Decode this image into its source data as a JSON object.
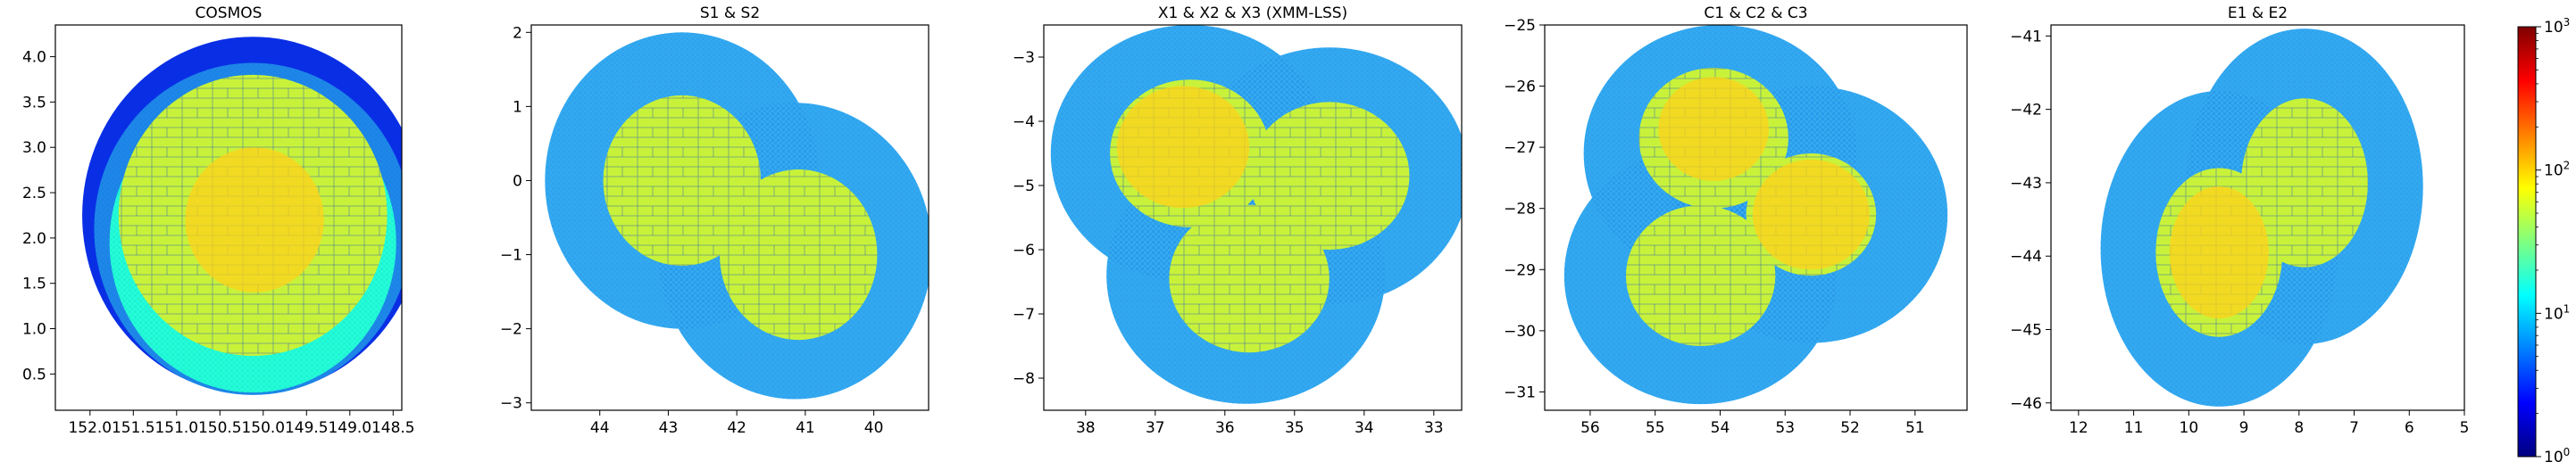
{
  "chart_data": [
    {
      "type": "heatmap",
      "title": "COSMOS",
      "xlim": [
        152.4,
        148.4
      ],
      "ylim": [
        0.1,
        4.35
      ],
      "xticks": [
        "152.0",
        "151.5",
        "151.0",
        "150.5",
        "150.0",
        "149.5",
        "149.0",
        "148.5"
      ],
      "yticks": [
        "0.5",
        "1.0",
        "1.5",
        "2.0",
        "2.5",
        "3.0",
        "3.5",
        "4.0"
      ],
      "footprint_circles": [
        {
          "cx": 150.12,
          "cy": 2.25,
          "r": 1.97
        }
      ],
      "deep_regions": [
        {
          "cx": 150.12,
          "cy": 2.25,
          "r": 1.55
        }
      ],
      "ultradeep_regions": [
        {
          "cx": 150.1,
          "cy": 2.2,
          "r": 0.8
        }
      ]
    },
    {
      "type": "heatmap",
      "title": "S1 & S2",
      "xlim": [
        45.0,
        39.2
      ],
      "ylim": [
        -3.1,
        2.1
      ],
      "xticks": [
        "44",
        "43",
        "42",
        "41",
        "40"
      ],
      "yticks": [
        "-3",
        "-2",
        "-1",
        "0",
        "1",
        "2"
      ],
      "footprint_circles": [
        {
          "cx": 42.8,
          "cy": 0.0,
          "r": 2.0
        },
        {
          "cx": 41.15,
          "cy": -0.95,
          "r": 2.0
        }
      ],
      "deep_regions": [
        {
          "cx": 42.8,
          "cy": 0.0,
          "r": 1.15
        },
        {
          "cx": 41.1,
          "cy": -1.0,
          "r": 1.15
        }
      ],
      "ultradeep_regions": []
    },
    {
      "type": "heatmap",
      "title": "X1 & X2 & X3 (XMM-LSS)",
      "xlim": [
        38.6,
        32.6
      ],
      "ylim": [
        -8.5,
        -2.5
      ],
      "xticks": [
        "38",
        "37",
        "36",
        "35",
        "34",
        "33"
      ],
      "yticks": [
        "-8",
        "-7",
        "-6",
        "-5",
        "-4",
        "-3"
      ],
      "footprint_circles": [
        {
          "cx": 36.5,
          "cy": -4.5,
          "r": 2.0
        },
        {
          "cx": 34.5,
          "cy": -4.85,
          "r": 2.0
        },
        {
          "cx": 35.7,
          "cy": -6.4,
          "r": 2.0
        }
      ],
      "deep_regions": [
        {
          "cx": 36.5,
          "cy": -4.5,
          "r": 1.15
        },
        {
          "cx": 34.5,
          "cy": -4.85,
          "r": 1.15
        },
        {
          "cx": 35.65,
          "cy": -6.45,
          "r": 1.15
        }
      ],
      "ultradeep_regions": [
        {
          "cx": 36.6,
          "cy": -4.4,
          "r": 0.95
        }
      ]
    },
    {
      "type": "heatmap",
      "title": "C1 & C2 & C3",
      "xlim": [
        56.7,
        50.2
      ],
      "ylim": [
        -31.3,
        -25.0
      ],
      "xticks": [
        "56",
        "55",
        "54",
        "53",
        "52",
        "51"
      ],
      "yticks": [
        "-31",
        "-30",
        "-29",
        "-28",
        "-27",
        "-26",
        "-25"
      ],
      "footprint_circles": [
        {
          "cx": 54.0,
          "cy": -27.1,
          "r": 2.1
        },
        {
          "cx": 52.6,
          "cy": -28.1,
          "r": 2.1
        },
        {
          "cx": 54.3,
          "cy": -29.1,
          "r": 2.1
        }
      ],
      "deep_regions": [
        {
          "cx": 54.1,
          "cy": -26.85,
          "r": 1.15
        },
        {
          "cx": 52.6,
          "cy": -28.1,
          "r": 1.0
        },
        {
          "cx": 54.3,
          "cy": -29.1,
          "r": 1.15
        }
      ],
      "ultradeep_regions": [
        {
          "cx": 52.6,
          "cy": -28.1,
          "r": 0.9
        },
        {
          "cx": 54.1,
          "cy": -26.7,
          "r": 0.85
        }
      ]
    },
    {
      "type": "heatmap",
      "title": "E1 & E2",
      "xlim": [
        12.5,
        5.0
      ],
      "ylim": [
        -46.1,
        -40.85
      ],
      "xticks": [
        "12",
        "11",
        "10",
        "9",
        "8",
        "7",
        "6",
        "5"
      ],
      "yticks": [
        "-46",
        "-45",
        "-44",
        "-43",
        "-42",
        "-41"
      ],
      "footprint_circles": [
        {
          "cx": 9.45,
          "cy": -43.9,
          "r": 2.15
        },
        {
          "cx": 7.9,
          "cy": -43.05,
          "r": 2.15
        }
      ],
      "deep_regions": [
        {
          "cx": 9.45,
          "cy": -43.95,
          "r": 1.15
        },
        {
          "cx": 7.9,
          "cy": -43.0,
          "r": 1.15
        }
      ],
      "ultradeep_regions": [
        {
          "cx": 9.45,
          "cy": -43.95,
          "r": 0.9
        }
      ]
    }
  ],
  "colorbar": {
    "scale": "log",
    "vmin": 1,
    "vmax": 1000,
    "colormap": "jet",
    "ticks": [
      {
        "value": 1,
        "base": "10",
        "exp": "0"
      },
      {
        "value": 10,
        "base": "10",
        "exp": "1"
      },
      {
        "value": 100,
        "base": "10",
        "exp": "2"
      },
      {
        "value": 1000,
        "base": "10",
        "exp": "3"
      }
    ]
  },
  "colors": {
    "shallow": "#33aaf0",
    "shallow_alt": "#1e88e8",
    "deep": "#c8f23a",
    "ultradeep": "#ffd21a",
    "cosmos_edge": "#0a2ee6",
    "cosmos_mid": "#23ffd6"
  }
}
